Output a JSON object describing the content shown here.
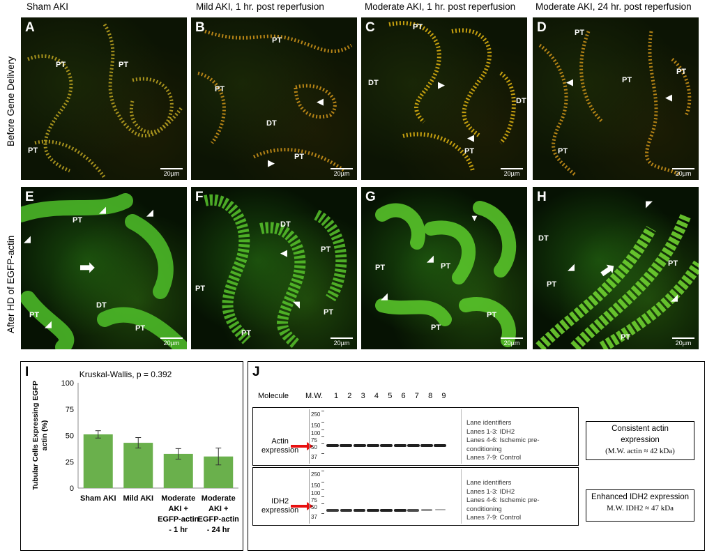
{
  "columns": [
    "Sham AKI",
    "Mild AKI, 1 hr. post reperfusion",
    "Moderate AKI, 1 hr. post reperfusion",
    "Moderate AKI, 24 hr. post reperfusion"
  ],
  "rows": [
    "Before Gene Delivery",
    "After HD of EGFP-actin"
  ],
  "scale_bar": "20µm",
  "panels": {
    "A": {
      "letter": "A",
      "labels": [
        "PT",
        "PT",
        "PT"
      ]
    },
    "B": {
      "letter": "B",
      "labels": [
        "PT",
        "PT",
        "DT",
        "PT"
      ]
    },
    "C": {
      "letter": "C",
      "labels": [
        "PT",
        "DT",
        "DT",
        "PT"
      ]
    },
    "D": {
      "letter": "D",
      "labels": [
        "PT",
        "PT",
        "PT",
        "PT"
      ]
    },
    "E": {
      "letter": "E",
      "labels": [
        "PT",
        "DT",
        "PT",
        "PT"
      ]
    },
    "F": {
      "letter": "F",
      "labels": [
        "DT",
        "PT",
        "PT",
        "PT",
        "PT"
      ]
    },
    "G": {
      "letter": "G",
      "labels": [
        "PT",
        "PT",
        "PT",
        "PT"
      ]
    },
    "H": {
      "letter": "H",
      "labels": [
        "DT",
        "PT",
        "PT",
        "PT"
      ]
    }
  },
  "panel_I": {
    "letter": "I",
    "chart_data": {
      "type": "bar",
      "title": "Kruskal-Wallis, p = 0.392",
      "ylabel": "Tubular Cells Expressing EGFP actin (%)",
      "categories": [
        "Sham AKI",
        "Mild AKI",
        "Moderate AKI + EGFP-actin - 1 hr",
        "Moderate AKI + EGFP-actin - 24 hr"
      ],
      "category_lines": [
        [
          "Sham AKI"
        ],
        [
          "Mild AKI"
        ],
        [
          "Moderate",
          "AKI +",
          "EGFP-actin",
          "- 1 hr"
        ],
        [
          "Moderate",
          "AKI +",
          "EGFP-actin",
          "- 24 hr"
        ]
      ],
      "values": [
        51,
        43,
        32.5,
        30
      ],
      "errors": [
        3.5,
        5,
        5,
        8
      ],
      "ylim": [
        0,
        100
      ],
      "yticks": [
        0,
        25,
        50,
        75,
        100
      ],
      "grid": false,
      "color": "#6ab04c"
    }
  },
  "panel_J": {
    "letter": "J",
    "header_molecule": "Molecule",
    "header_mw": "M.W.",
    "lanes": [
      "1",
      "2",
      "3",
      "4",
      "5",
      "6",
      "7",
      "8",
      "9"
    ],
    "mw_markers": [
      "250",
      "150",
      "100",
      "75",
      "50",
      "37"
    ],
    "blots": [
      {
        "label": [
          "Actin",
          "expression"
        ],
        "legend": [
          "Lane identifiers",
          "Lanes 1-3: IDH2",
          "Lanes 4-6: Ischemic pre-",
          "conditioning",
          "Lanes 7-9: Control"
        ],
        "band_intensity": [
          1,
          1,
          1,
          1,
          1,
          1,
          1,
          1,
          1
        ],
        "note_title": [
          "Consistent actin",
          "expression"
        ],
        "note_sub": "(M.W. actin ≈ 42 kDa)"
      },
      {
        "label": [
          "IDH2",
          "expression"
        ],
        "legend": [
          "Lane identifiers",
          "Lanes 1-3: IDH2",
          "Lanes 4-6: Ischemic pre-",
          "conditioning",
          "Lanes 7-9: Control"
        ],
        "band_intensity": [
          0.85,
          0.9,
          0.95,
          1,
          1,
          1,
          0.75,
          0.35,
          0.2
        ],
        "note_title": [
          "Enhanced IDH2 expression"
        ],
        "note_sub": "M.W. IDH2 ≈ 47 kDa"
      }
    ],
    "arrow_color": "#e81010"
  }
}
